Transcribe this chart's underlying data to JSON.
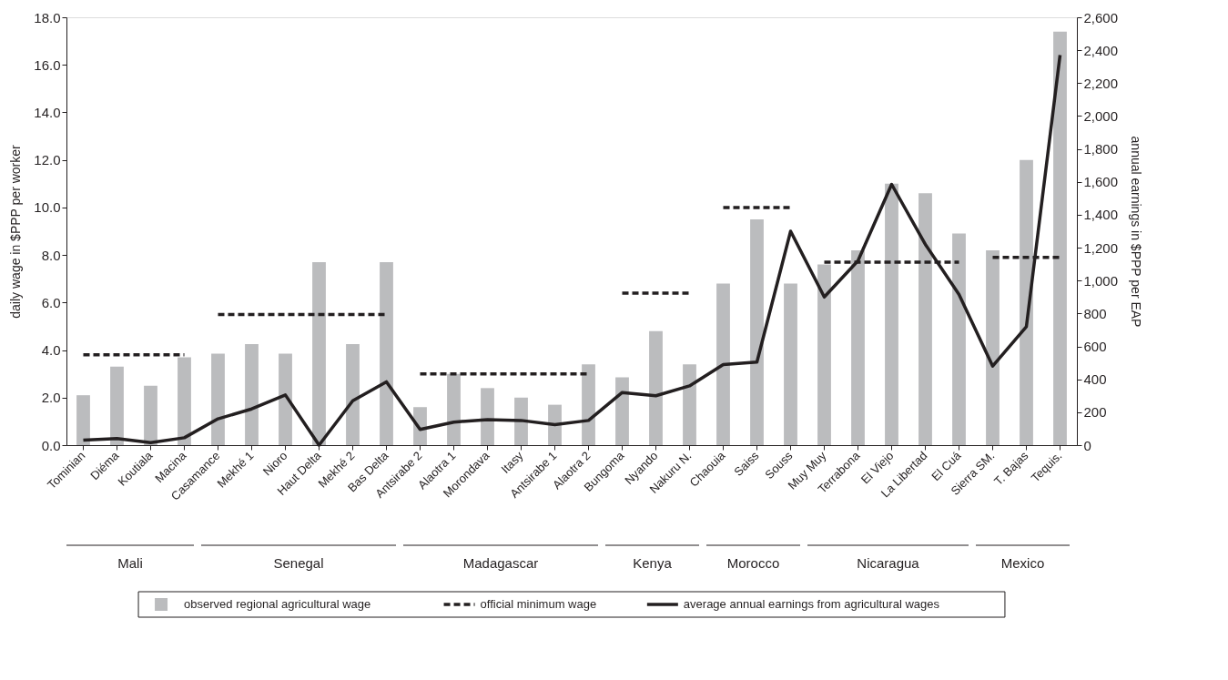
{
  "chart_data": {
    "type": "bar",
    "ylabel": "daily wage in $PPP per worker",
    "y2label": "annual earnings in $PPP per EAP",
    "categories": [
      "Tominian",
      "Diéma",
      "Koutiala",
      "Macina",
      "Casamance",
      "Mekhé 1",
      "Nioro",
      "Haut Delta",
      "Mekhé 2",
      "Bas Delta",
      "Antsirabe 2",
      "Alaotra 1",
      "Morondava",
      "Itasy",
      "Antsirabe 1",
      "Alaotra 2",
      "Bungoma",
      "Nyando",
      "Nakuru N.",
      "Chaouia",
      "Saiss",
      "Souss",
      "Muy Muy",
      "Terrabona",
      "El Viejo",
      "La Libertad",
      "El Cuá",
      "Sierra SM.",
      "T. Bajas",
      "Tequis."
    ],
    "series": [
      {
        "name": "observed regional agricultural wage",
        "color": "#bbbcbe",
        "values": [
          2.1,
          3.3,
          2.5,
          3.7,
          3.85,
          4.25,
          3.85,
          7.7,
          4.25,
          7.7,
          1.6,
          3.0,
          2.4,
          2.0,
          1.7,
          3.4,
          2.85,
          4.8,
          3.4,
          6.8,
          9.5,
          6.8,
          7.6,
          8.2,
          11.0,
          10.6,
          8.9,
          8.2,
          12.0,
          17.4
        ]
      },
      {
        "name": "official minimum wage",
        "type": "line",
        "line_style": "dashed",
        "color": "#231f20",
        "values": [
          3.8,
          3.8,
          3.8,
          3.8,
          5.5,
          5.5,
          5.5,
          5.5,
          5.5,
          5.5,
          3.0,
          3.0,
          3.0,
          3.0,
          3.0,
          3.0,
          6.4,
          6.4,
          6.4,
          10.0,
          10.0,
          10.0,
          7.7,
          7.7,
          7.7,
          7.7,
          7.7,
          7.9,
          7.9,
          7.9
        ]
      },
      {
        "name": "average annual earnings from agricultural wages",
        "type": "line",
        "line_style": "solid",
        "axis": "y2",
        "color": "#231f20",
        "values": [
          30,
          40,
          15,
          45,
          160,
          220,
          305,
          0,
          270,
          385,
          95,
          140,
          155,
          150,
          125,
          150,
          320,
          300,
          360,
          490,
          505,
          1300,
          900,
          1120,
          1585,
          1220,
          915,
          480,
          720,
          2370
        ]
      }
    ],
    "ylim": [
      0,
      18
    ],
    "yticks": [
      {
        "value": 0,
        "label": "0.0"
      },
      {
        "value": 2,
        "label": "2.0"
      },
      {
        "value": 4,
        "label": "4.0"
      },
      {
        "value": 6,
        "label": "6.0"
      },
      {
        "value": 8,
        "label": "8.0"
      },
      {
        "value": 10,
        "label": "10.0"
      },
      {
        "value": 12,
        "label": "12.0"
      },
      {
        "value": 14,
        "label": "14.0"
      },
      {
        "value": 16,
        "label": "16.0"
      },
      {
        "value": 18,
        "label": "18.0"
      }
    ],
    "y2lim": [
      0,
      2600
    ],
    "y2ticks": [
      0,
      200,
      400,
      600,
      800,
      {
        "value": 1000,
        "label": "1,000"
      },
      {
        "value": 1200,
        "label": "1,200"
      },
      {
        "value": 1400,
        "label": "1,400"
      },
      {
        "value": 1600,
        "label": "1,600"
      },
      {
        "value": 1800,
        "label": "1,800"
      },
      {
        "value": 2000,
        "label": "2,000"
      },
      {
        "value": 2200,
        "label": "2,200"
      },
      {
        "value": 2400,
        "label": "2,400"
      },
      {
        "value": 2600,
        "label": "2,600"
      }
    ],
    "annotations": [
      "Mali",
      "Senegal",
      "Madagascar",
      "Kenya",
      "Morocco",
      "Nicaragua",
      "Mexico"
    ],
    "grid": false,
    "legend": "bottom"
  }
}
